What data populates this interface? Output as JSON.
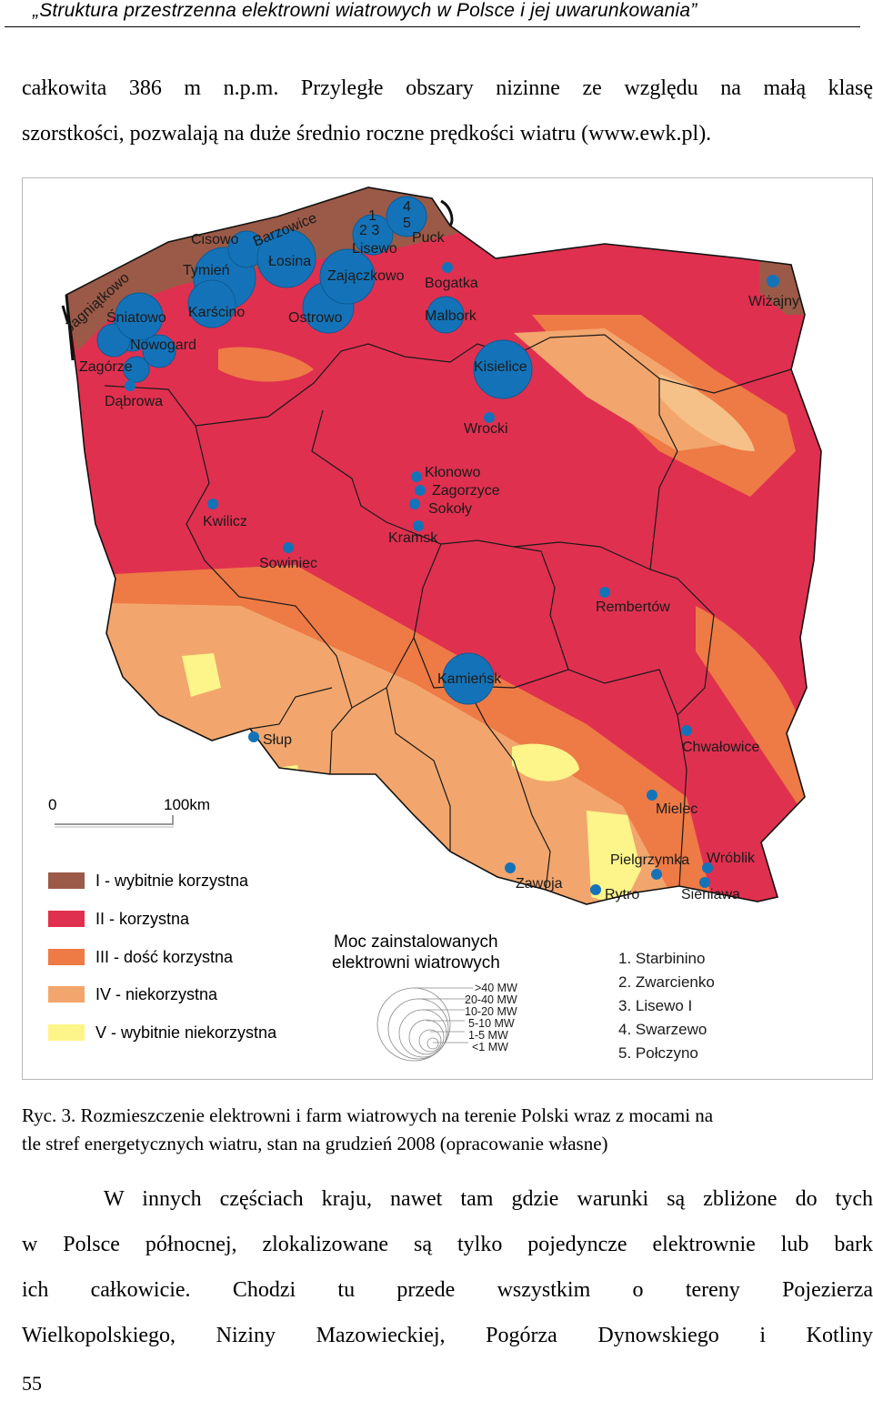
{
  "header": {
    "running_title": "„Struktura przestrzenna elektrowni wiatrowych w Polsce i jej uwarunkowania”"
  },
  "intro_paragraph": {
    "lines": [
      "całkowita 386 m n.p.m. Przyległe obszary nizinne ze względu na małą klasę",
      "szorstkości, pozwalają na duże średnio roczne prędkości wiatru (www.ewk.pl)."
    ]
  },
  "figure": {
    "scale": {
      "start": "0",
      "end": "100km"
    },
    "legend": {
      "zones": [
        {
          "label": "I - wybitnie korzystna",
          "color": "#9b5a47"
        },
        {
          "label": "II - korzystna",
          "color": "#e0304f"
        },
        {
          "label": "III - dość korzystna",
          "color": "#ee7a45"
        },
        {
          "label": "IV - niekorzystna",
          "color": "#f2a66d"
        },
        {
          "label": "V - wybitnie niekorzystna",
          "color": "#fdf48a"
        }
      ],
      "power_title_line1": "Moc zainstalowanych",
      "power_title_line2": "elektrowni wiatrowych",
      "power_classes": [
        ">40 MW",
        "20-40 MW",
        "10-20 MW",
        "5-10 MW",
        "1-5 MW",
        "<1 MW"
      ],
      "numbered_sites": [
        "1. Starbinino",
        "2. Zwarcienko",
        "3. Lisewo I",
        "4. Swarzewo",
        "5. Połczyno"
      ]
    },
    "map_labels": {
      "barzowice": "Barzowice",
      "cisowo": "Cisowo",
      "jagniatkowo": "Jagniątkowo",
      "tymien": "Tymień",
      "losina": "Łosina",
      "sniatowo": "Śniatowo",
      "karscino": "Karścino",
      "ostrowo": "Ostrowo",
      "zajaczkowo": "Zajączkowo",
      "lisewo": "Lisewo",
      "puck": "Puck",
      "n1": "1",
      "n23": "2 3",
      "n4": "4",
      "n5": "5",
      "bogatka": "Bogatka",
      "malbork": "Malbork",
      "wizajny": "Wiżajny",
      "nowogard": "Nowogard",
      "zagorze": "Zagórze",
      "dabrowa": "Dąbrowa",
      "kisielice": "Kisielice",
      "wrocki": "Wrocki",
      "klonowo": "Kłonowo",
      "zagorzyce": "Zagorzyce",
      "sokoly": "Sokoły",
      "kramsk": "Kramsk",
      "kwilicz": "Kwilicz",
      "sowiniec": "Sowiniec",
      "rembertow": "Rembertów",
      "kamiensk": "Kamieńsk",
      "slup": "Słup",
      "chwalowice": "Chwałowice",
      "mielec": "Mielec",
      "pielgrzymka": "Pielgrzymka",
      "wroblik": "Wróblik",
      "zawoja": "Zawoja",
      "rytro": "Rytro",
      "sieniawa": "Sieniawa"
    }
  },
  "caption": {
    "lines": [
      "Ryc. 3. Rozmieszczenie elektrowni i farm wiatrowych na terenie Polski wraz z mocami na",
      "tle stref energetycznych wiatru, stan na grudzień 2008 (opracowanie własne)"
    ]
  },
  "body_paragraph": {
    "lines": [
      "W innych częściach kraju, nawet tam gdzie warunki są zbliżone do tych",
      "w Polsce północnej, zlokalizowane są tylko pojedyncze elektrownie lub bark",
      "ich całkowicie. Chodzi tu przede wszystkim o tereny Pojezierza",
      "Wielkopolskiego, Niziny Mazowieckiej, Pogórza Dynowskiego i Kotliny"
    ]
  },
  "page_number": "55"
}
